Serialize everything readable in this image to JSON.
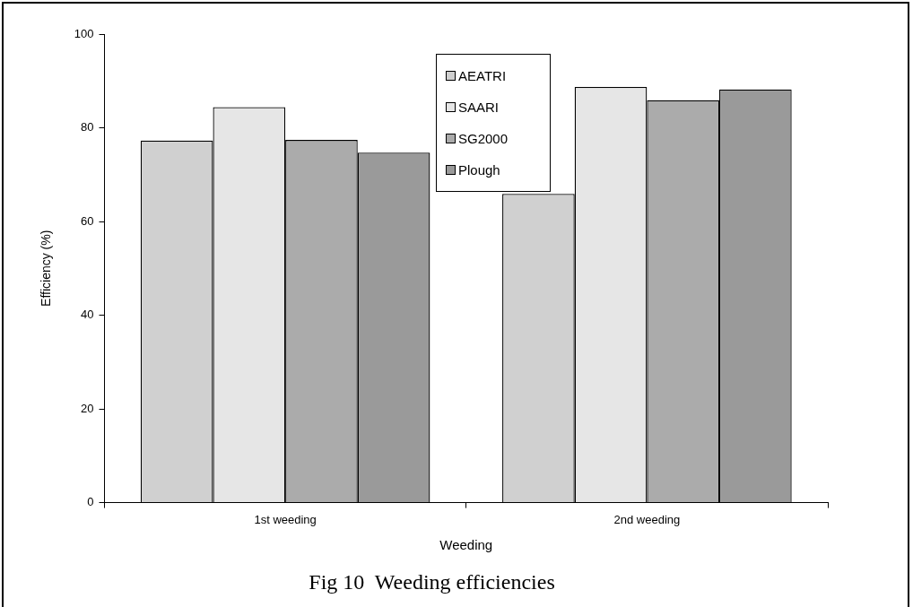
{
  "chart_data": {
    "type": "bar",
    "title": "Fig 10  Weeding efficiencies",
    "xlabel": "Weeding",
    "ylabel": "Efficiency (%)",
    "categories": [
      "1st weeding",
      "2nd weeding"
    ],
    "series": [
      {
        "name": "AEATRI",
        "color": "#d0d0d0",
        "values": [
          77.3,
          65.9
        ]
      },
      {
        "name": "SAARI",
        "color": "#e6e6e6",
        "values": [
          84.4,
          88.7
        ]
      },
      {
        "name": "SG2000",
        "color": "#ababab",
        "values": [
          77.4,
          85.9
        ]
      },
      {
        "name": "Plough",
        "color": "#9a9a9a",
        "values": [
          74.7,
          88.2
        ]
      }
    ],
    "ylim": [
      0,
      100
    ],
    "yticks": [
      0,
      20,
      40,
      60,
      80,
      100
    ],
    "grid": false,
    "legend": "top"
  }
}
